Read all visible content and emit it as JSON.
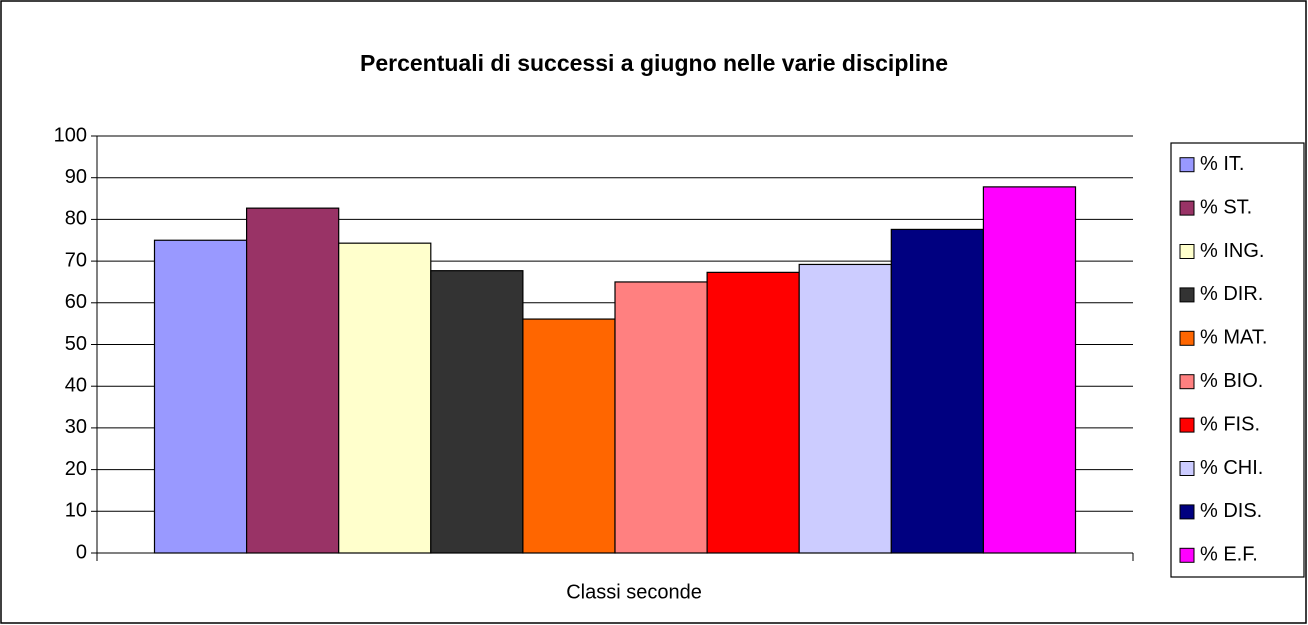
{
  "chart_data": {
    "type": "bar",
    "title": "Percentuali di successi a giugno nelle varie discipline",
    "x_label": "Classi seconde",
    "categories": [
      "Classi seconde"
    ],
    "series": [
      {
        "name": "% IT.",
        "color": "#9999ff",
        "values": [
          75
        ]
      },
      {
        "name": "% ST.",
        "color": "#993366",
        "values": [
          82.7
        ]
      },
      {
        "name": "% ING.",
        "color": "#ffffcc",
        "values": [
          74.3
        ]
      },
      {
        "name": "% DIR.",
        "color": "#333333",
        "values": [
          67.7
        ]
      },
      {
        "name": "% MAT.",
        "color": "#ff6600",
        "values": [
          56.1
        ]
      },
      {
        "name": "% BIO.",
        "color": "#ff8080",
        "values": [
          65
        ]
      },
      {
        "name": "% FIS.",
        "color": "#ff0000",
        "values": [
          67.3
        ]
      },
      {
        "name": "% CHI.",
        "color": "#ccccff",
        "values": [
          69.2
        ]
      },
      {
        "name": "% DIS.",
        "color": "#000080",
        "values": [
          77.6
        ]
      },
      {
        "name": "% E.F.",
        "color": "#ff00ff",
        "values": [
          87.8
        ]
      }
    ],
    "ylim": [
      0,
      100
    ],
    "yticks": [
      0,
      10,
      20,
      30,
      40,
      50,
      60,
      70,
      80,
      90,
      100
    ],
    "grid": true,
    "legend": "right"
  }
}
